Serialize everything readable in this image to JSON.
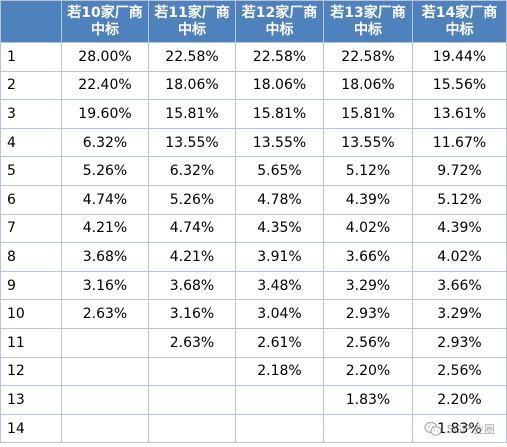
{
  "table": {
    "headers": [
      {
        "line1": "若10家厂商",
        "line2": "中标"
      },
      {
        "line1": "若11家厂商",
        "line2": "中标"
      },
      {
        "line1": "若12家厂商",
        "line2": "中标"
      },
      {
        "line1": "若13家厂商",
        "line2": "中标"
      },
      {
        "line1": "若14家厂商",
        "line2": "中标"
      }
    ],
    "rows": [
      {
        "idx": "1",
        "cells": [
          "28.00%",
          "22.58%",
          "22.58%",
          "22.58%",
          "19.44%"
        ]
      },
      {
        "idx": "2",
        "cells": [
          "22.40%",
          "18.06%",
          "18.06%",
          "18.06%",
          "15.56%"
        ]
      },
      {
        "idx": "3",
        "cells": [
          "19.60%",
          "15.81%",
          "15.81%",
          "15.81%",
          "13.61%"
        ]
      },
      {
        "idx": "4",
        "cells": [
          "6.32%",
          "13.55%",
          "13.55%",
          "13.55%",
          "11.67%"
        ]
      },
      {
        "idx": "5",
        "cells": [
          "5.26%",
          "6.32%",
          "5.65%",
          "5.12%",
          "9.72%"
        ]
      },
      {
        "idx": "6",
        "cells": [
          "4.74%",
          "5.26%",
          "4.78%",
          "4.39%",
          "5.12%"
        ]
      },
      {
        "idx": "7",
        "cells": [
          "4.21%",
          "4.74%",
          "4.35%",
          "4.02%",
          "4.39%"
        ]
      },
      {
        "idx": "8",
        "cells": [
          "3.68%",
          "4.21%",
          "3.91%",
          "3.66%",
          "4.02%"
        ]
      },
      {
        "idx": "9",
        "cells": [
          "3.16%",
          "3.68%",
          "3.48%",
          "3.29%",
          "3.66%"
        ]
      },
      {
        "idx": "10",
        "cells": [
          "2.63%",
          "3.16%",
          "3.04%",
          "2.93%",
          "3.29%"
        ]
      },
      {
        "idx": "11",
        "cells": [
          "",
          "2.63%",
          "2.61%",
          "2.56%",
          "2.93%"
        ]
      },
      {
        "idx": "12",
        "cells": [
          "",
          "",
          "2.18%",
          "2.20%",
          "2.56%"
        ]
      },
      {
        "idx": "13",
        "cells": [
          "",
          "",
          "",
          "1.83%",
          "2.20%"
        ]
      },
      {
        "idx": "14",
        "cells": [
          "",
          "",
          "",
          "",
          "1.83%"
        ]
      }
    ]
  },
  "watermark": {
    "text": "5G产业圈",
    "icon": "wechat-logo-icon"
  },
  "colors": {
    "header_bg": "#4f81bd",
    "header_text": "#ffffff",
    "border": "#b7c6d6"
  }
}
